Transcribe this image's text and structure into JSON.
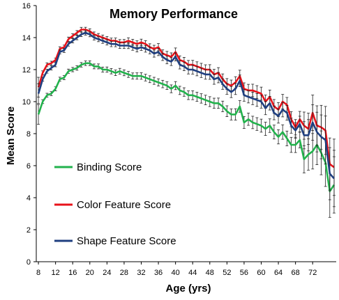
{
  "chart_data": {
    "type": "line",
    "title": "Memory Performance",
    "xlabel": "Age (yrs)",
    "ylabel": "Mean Score",
    "xlim": [
      7.5,
      77.5
    ],
    "ylim": [
      0,
      16
    ],
    "x_ticks": [
      8,
      12,
      16,
      20,
      24,
      28,
      32,
      36,
      40,
      44,
      48,
      52,
      56,
      60,
      64,
      68,
      72
    ],
    "y_ticks": [
      0,
      2,
      4,
      6,
      8,
      10,
      12,
      14,
      16
    ],
    "grid": false,
    "legend_position": "left",
    "x": [
      8,
      9,
      10,
      11,
      12,
      13,
      14,
      15,
      16,
      17,
      18,
      19,
      20,
      21,
      22,
      23,
      24,
      25,
      26,
      27,
      28,
      29,
      30,
      31,
      32,
      33,
      34,
      35,
      36,
      37,
      38,
      39,
      40,
      41,
      42,
      43,
      44,
      45,
      46,
      47,
      48,
      49,
      50,
      51,
      52,
      53,
      54,
      55,
      56,
      57,
      58,
      59,
      60,
      61,
      62,
      63,
      64,
      65,
      66,
      67,
      68,
      69,
      70,
      71,
      72,
      73,
      74,
      75,
      76,
      77
    ],
    "series": [
      {
        "name": "Binding Score",
        "color": "#22b24c",
        "values": [
          9.2,
          10.0,
          10.4,
          10.5,
          10.8,
          11.4,
          11.5,
          11.9,
          12.0,
          12.1,
          12.3,
          12.4,
          12.4,
          12.2,
          12.2,
          12.0,
          12.0,
          11.9,
          11.8,
          11.9,
          11.8,
          11.7,
          11.6,
          11.6,
          11.6,
          11.5,
          11.4,
          11.3,
          11.2,
          11.1,
          11.0,
          10.8,
          11.0,
          10.7,
          10.6,
          10.4,
          10.4,
          10.3,
          10.2,
          10.1,
          10.0,
          9.9,
          9.9,
          9.7,
          9.4,
          9.2,
          9.2,
          9.7,
          8.7,
          8.9,
          8.7,
          8.6,
          8.5,
          8.3,
          8.5,
          8.1,
          7.8,
          8.1,
          7.7,
          7.3,
          7.3,
          7.6,
          6.4,
          6.7,
          6.9,
          7.3,
          6.8,
          6.2,
          4.4,
          4.8
        ]
      },
      {
        "name": "Color Feature Score",
        "color": "#e8121a",
        "values": [
          10.9,
          11.8,
          12.3,
          12.4,
          12.6,
          13.3,
          13.4,
          13.9,
          14.1,
          14.3,
          14.5,
          14.5,
          14.4,
          14.2,
          14.1,
          14.0,
          13.9,
          13.8,
          13.8,
          13.7,
          13.7,
          13.8,
          13.7,
          13.6,
          13.7,
          13.6,
          13.4,
          13.3,
          13.4,
          13.0,
          12.9,
          12.8,
          13.1,
          12.6,
          12.5,
          12.3,
          12.3,
          12.2,
          12.1,
          12.0,
          12.0,
          11.7,
          11.8,
          11.4,
          11.1,
          11.0,
          11.2,
          11.6,
          10.8,
          10.7,
          10.7,
          10.6,
          10.5,
          10.0,
          10.3,
          9.7,
          9.5,
          10.0,
          9.8,
          8.9,
          8.4,
          8.9,
          8.5,
          8.3,
          9.3,
          8.5,
          8.4,
          8.2,
          6.1,
          5.9
        ]
      },
      {
        "name": "Shape Feature Score",
        "color": "#1f3f80",
        "values": [
          10.5,
          11.4,
          11.9,
          12.1,
          12.3,
          13.1,
          13.2,
          13.6,
          13.8,
          14.0,
          14.2,
          14.3,
          14.2,
          14.0,
          13.9,
          13.8,
          13.7,
          13.6,
          13.6,
          13.5,
          13.5,
          13.5,
          13.4,
          13.3,
          13.4,
          13.3,
          13.2,
          13.0,
          13.1,
          12.8,
          12.6,
          12.5,
          12.8,
          12.3,
          12.2,
          12.0,
          12.0,
          11.9,
          11.8,
          11.7,
          11.7,
          11.4,
          11.5,
          11.1,
          10.8,
          10.6,
          10.8,
          11.3,
          10.4,
          10.3,
          10.2,
          10.1,
          10.0,
          9.6,
          9.9,
          9.3,
          9.1,
          9.5,
          9.3,
          8.5,
          8.2,
          8.6,
          7.9,
          7.9,
          8.7,
          8.1,
          7.8,
          7.6,
          5.5,
          5.2
        ]
      }
    ]
  }
}
